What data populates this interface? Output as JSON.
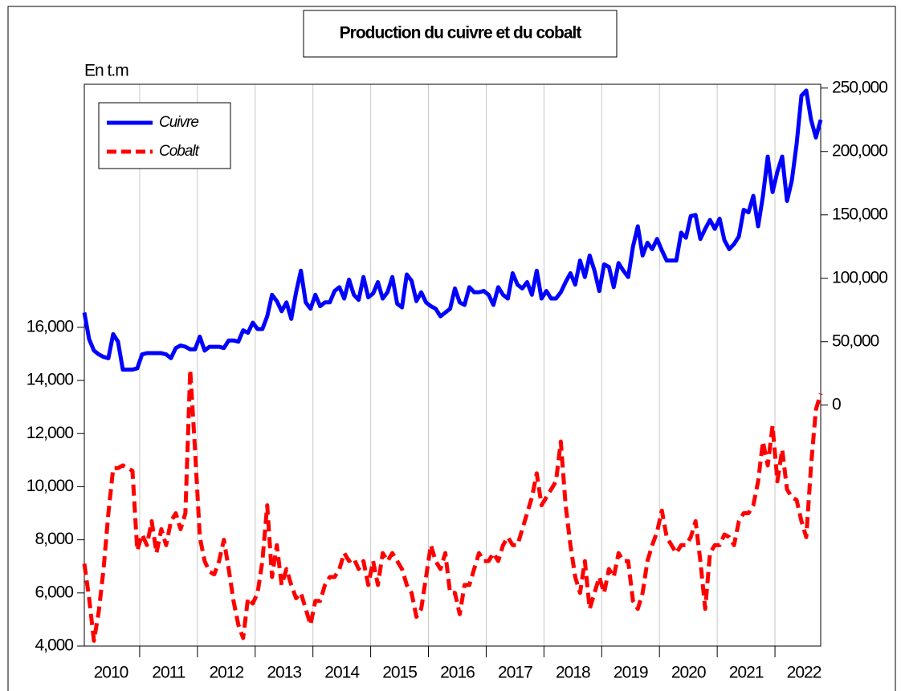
{
  "chart_data": {
    "type": "line",
    "title": "Production du cuivre et du cobalt",
    "y_label": "En t.m",
    "categories": [
      null,
      null,
      null,
      null,
      null,
      "2010",
      null,
      null,
      null,
      null,
      null,
      null,
      null,
      null,
      null,
      null,
      null,
      "2011",
      null,
      null,
      null,
      null,
      null,
      null,
      null,
      null,
      null,
      null,
      null,
      "2012",
      null,
      null,
      null,
      null,
      null,
      null,
      null,
      null,
      null,
      null,
      null,
      "2013",
      null,
      null,
      null,
      null,
      null,
      null,
      null,
      null,
      null,
      null,
      null,
      "2014",
      null,
      null,
      null,
      null,
      null,
      null,
      null,
      null,
      null,
      null,
      null,
      "2015",
      null,
      null,
      null,
      null,
      null,
      null,
      null,
      null,
      null,
      null,
      null,
      "2016",
      null,
      null,
      null,
      null,
      null,
      null,
      null,
      null,
      null,
      null,
      null,
      "2017",
      null,
      null,
      null,
      null,
      null,
      null,
      null,
      null,
      null,
      null,
      null,
      "2018",
      null,
      null,
      null,
      null,
      null,
      null,
      null,
      null,
      null,
      null,
      null,
      "2019",
      null,
      null,
      null,
      null,
      null,
      null,
      null,
      null,
      null,
      null,
      null,
      "2020",
      null,
      null,
      null,
      null,
      null,
      null,
      null,
      null,
      null,
      null,
      null,
      "2021",
      null,
      null,
      null,
      null,
      null,
      null,
      null,
      null,
      null,
      null,
      null,
      "2022",
      null,
      null,
      null,
      null
    ],
    "series": [
      {
        "name": "Cuivre",
        "color": "#0000ff",
        "axis": "y2",
        "dash": false,
        "values": [
          73000,
          52000,
          43000,
          40000,
          38000,
          37000,
          56000,
          50000,
          28000,
          28000,
          28000,
          29000,
          40000,
          41000,
          41000,
          41000,
          41000,
          40000,
          37000,
          45000,
          47000,
          46000,
          44000,
          44000,
          54000,
          43000,
          46000,
          46000,
          46000,
          45000,
          51000,
          51000,
          50000,
          59000,
          57000,
          65000,
          60000,
          60000,
          70000,
          87000,
          82000,
          74000,
          81000,
          68000,
          89000,
          106000,
          81000,
          76000,
          87000,
          78000,
          81000,
          81000,
          90000,
          93000,
          84000,
          99000,
          87000,
          83000,
          101000,
          85000,
          88000,
          97000,
          84000,
          89000,
          101000,
          80000,
          77000,
          103000,
          98000,
          82000,
          89000,
          81000,
          78000,
          76000,
          70000,
          73000,
          76000,
          92000,
          81000,
          79000,
          93000,
          89000,
          89000,
          90000,
          87000,
          79000,
          93000,
          87000,
          84000,
          104000,
          95000,
          92000,
          97000,
          87000,
          106000,
          84000,
          90000,
          84000,
          84000,
          89000,
          97000,
          104000,
          95000,
          114000,
          101000,
          118000,
          106000,
          90000,
          111000,
          109000,
          93000,
          112000,
          106000,
          101000,
          125000,
          141000,
          118000,
          128000,
          123000,
          131000,
          122000,
          114000,
          114000,
          114000,
          136000,
          132000,
          149000,
          150000,
          131000,
          139000,
          146000,
          139000,
          147000,
          130000,
          123000,
          127000,
          133000,
          154000,
          152000,
          165000,
          141000,
          165000,
          196000,
          168000,
          184000,
          196000,
          161000,
          177000,
          206000,
          244000,
          248000,
          225000,
          211000,
          225000
        ]
      },
      {
        "name": "Cobalt",
        "color": "#ff0000",
        "dash": true,
        "values": [
          7100,
          5800,
          4200,
          5300,
          6900,
          9000,
          10700,
          10700,
          10800,
          10700,
          10600,
          7600,
          8200,
          7800,
          8700,
          7500,
          8400,
          7800,
          8700,
          9000,
          8400,
          9000,
          14400,
          11400,
          8100,
          7200,
          6800,
          6700,
          7200,
          8000,
          6900,
          5700,
          4800,
          4300,
          5800,
          5600,
          6000,
          7200,
          9300,
          6600,
          7800,
          6300,
          6900,
          6300,
          5800,
          6000,
          5400,
          4800,
          5700,
          5700,
          6300,
          6600,
          6600,
          6900,
          7500,
          7200,
          7300,
          6900,
          7200,
          6300,
          7200,
          6300,
          7500,
          7200,
          7500,
          7200,
          6900,
          6300,
          6000,
          5100,
          5400,
          6600,
          7800,
          7200,
          6900,
          7500,
          6000,
          6000,
          5200,
          6300,
          6300,
          6900,
          7500,
          7200,
          7200,
          7500,
          7200,
          7800,
          8100,
          7800,
          7800,
          8400,
          9000,
          9600,
          10500,
          9300,
          9600,
          9900,
          10200,
          11700,
          9300,
          7800,
          6600,
          6000,
          7200,
          5400,
          6000,
          6600,
          6000,
          6900,
          6600,
          7500,
          7200,
          7200,
          5700,
          5400,
          6000,
          7200,
          7800,
          8300,
          9100,
          8100,
          7800,
          7500,
          7800,
          7800,
          8100,
          8700,
          7200,
          5400,
          7500,
          7800,
          7800,
          8200,
          8100,
          7800,
          8700,
          9000,
          9000,
          9300,
          10200,
          11700,
          10800,
          12300,
          10200,
          11400,
          9900,
          9600,
          9500,
          8700,
          8100,
          10800,
          12900,
          13500
        ]
      }
    ],
    "ylim": [
      4000,
      25150
    ],
    "yticks": [
      {
        "value": 4000,
        "label": "4,000"
      },
      {
        "value": 6000,
        "label": "6,000"
      },
      {
        "value": 8000,
        "label": "8,000"
      },
      {
        "value": 10000,
        "label": "10,000"
      },
      {
        "value": 12000,
        "label": "12,000"
      },
      {
        "value": 14000,
        "label": "14,000"
      },
      {
        "value": 16000,
        "label": "16,000"
      }
    ],
    "y2lim": [
      -190000,
      253000
    ],
    "y2ticks": [
      0,
      {
        "value": 50000,
        "label": "50,000"
      },
      {
        "value": 100000,
        "label": "100,000"
      },
      {
        "value": 150000,
        "label": "150,000"
      },
      {
        "value": 200000,
        "label": "200,000"
      },
      {
        "value": 250000,
        "label": "250,000"
      }
    ],
    "legend": "upper left"
  }
}
